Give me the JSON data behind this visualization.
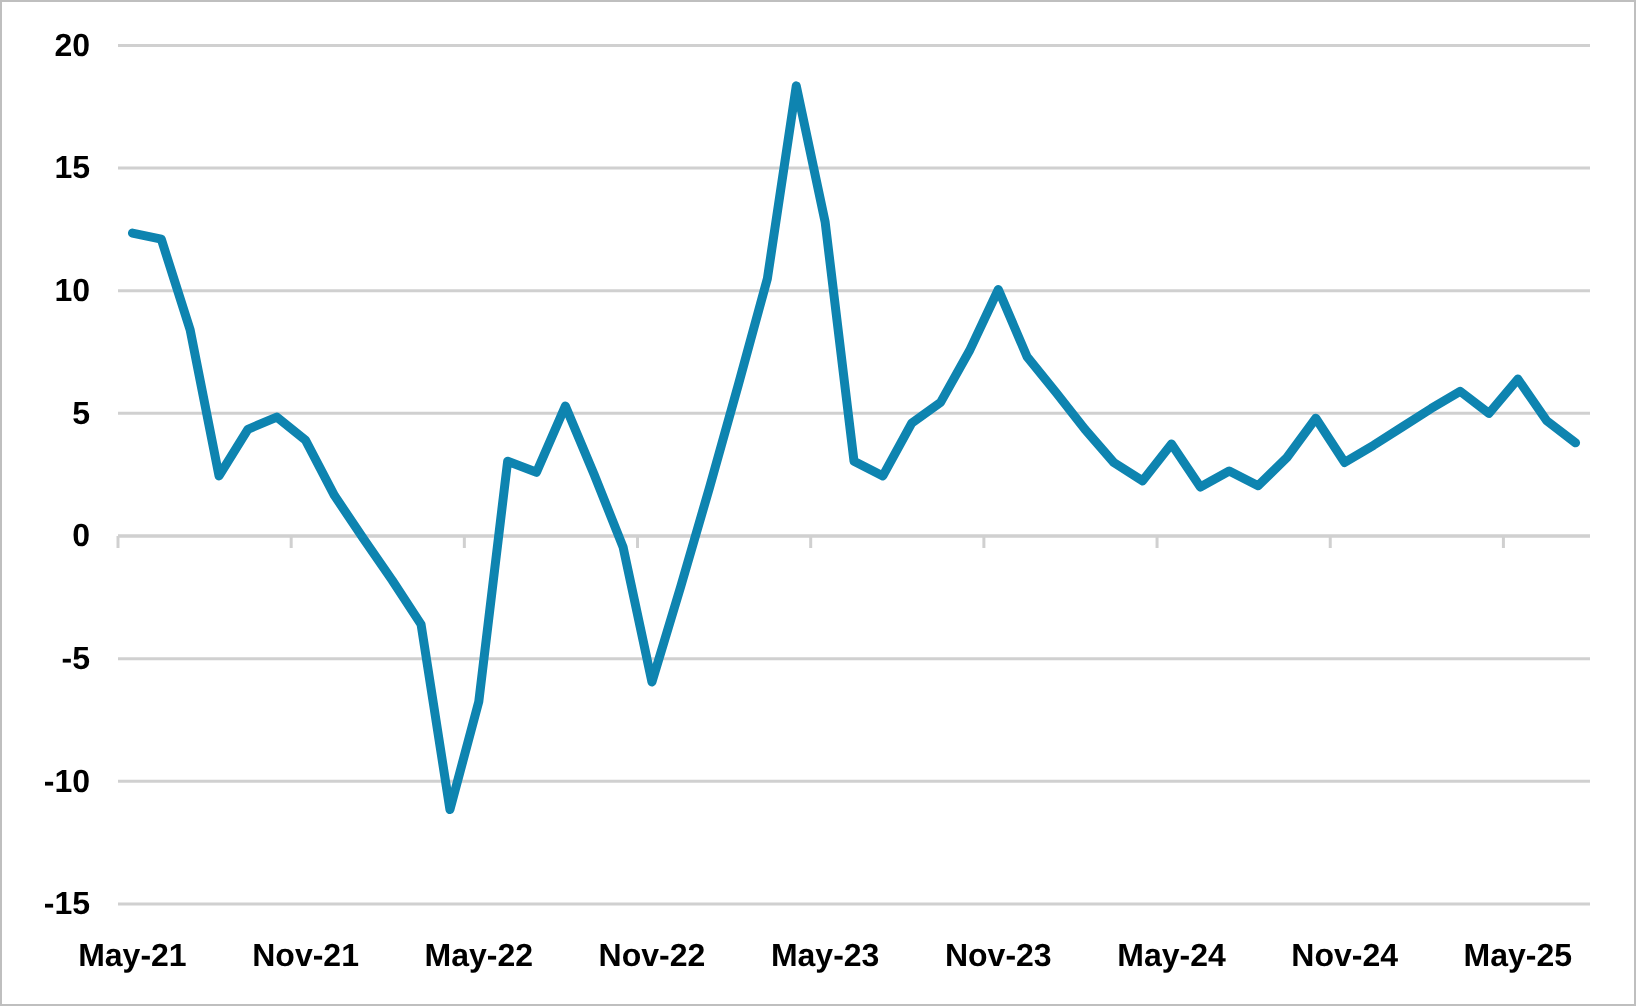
{
  "chart_data": {
    "type": "line",
    "categories": [
      "May-21",
      null,
      null,
      null,
      null,
      null,
      "Nov-21",
      null,
      null,
      null,
      null,
      null,
      "May-22",
      null,
      null,
      null,
      null,
      null,
      "Nov-22",
      null,
      null,
      null,
      null,
      null,
      "May-23",
      null,
      null,
      null,
      null,
      null,
      "Nov-23",
      null,
      null,
      null,
      null,
      null,
      "May-24",
      null,
      null,
      null,
      null,
      null,
      "Nov-24",
      null,
      null,
      null,
      null,
      null,
      "May-25",
      null,
      null
    ],
    "series": [
      {
        "color": "#0e84b0",
        "values": [
          12.35,
          12.1,
          8.4,
          2.45,
          4.35,
          4.85,
          3.9,
          1.65,
          -0.1,
          -1.8,
          -3.6,
          -11.15,
          -6.75,
          3.05,
          2.6,
          5.3,
          2.5,
          -0.45,
          -5.95,
          -2.05,
          2.0,
          6.2,
          10.5,
          18.35,
          12.8,
          3.05,
          2.45,
          4.6,
          5.45,
          7.55,
          10.05,
          7.3,
          5.85,
          4.35,
          3.0,
          2.25,
          3.75,
          2.0,
          2.65,
          2.05,
          3.2,
          4.8,
          3.0,
          3.7,
          4.45,
          5.2,
          5.9,
          5.0,
          6.4,
          4.7,
          3.8
        ]
      }
    ],
    "ylim": [
      -15,
      20
    ],
    "yticks": [
      -15,
      -10,
      -5,
      0,
      5,
      10,
      15,
      20
    ],
    "grid": "y",
    "line_style": "solid"
  }
}
